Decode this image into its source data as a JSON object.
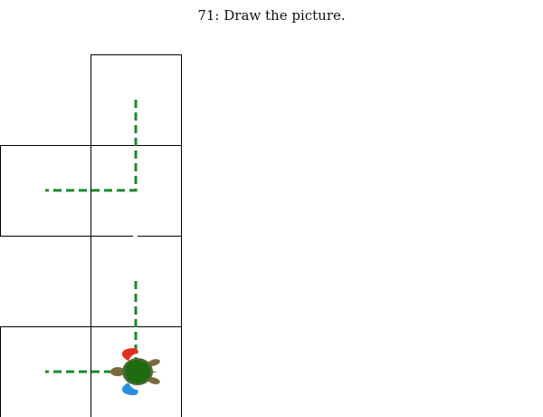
{
  "puzzle": {
    "title": "71: Draw the picture."
  },
  "colors": {
    "grid_line": "#000000",
    "path": "#1a8a2e",
    "turtle_shell": "#1f6b10",
    "turtle_body": "#7a6a3a",
    "turtle_left_flipper": "#e0301e",
    "turtle_right_flipper": "#2a8ee0"
  },
  "icons": {
    "turtle": "turtle-icon"
  }
}
